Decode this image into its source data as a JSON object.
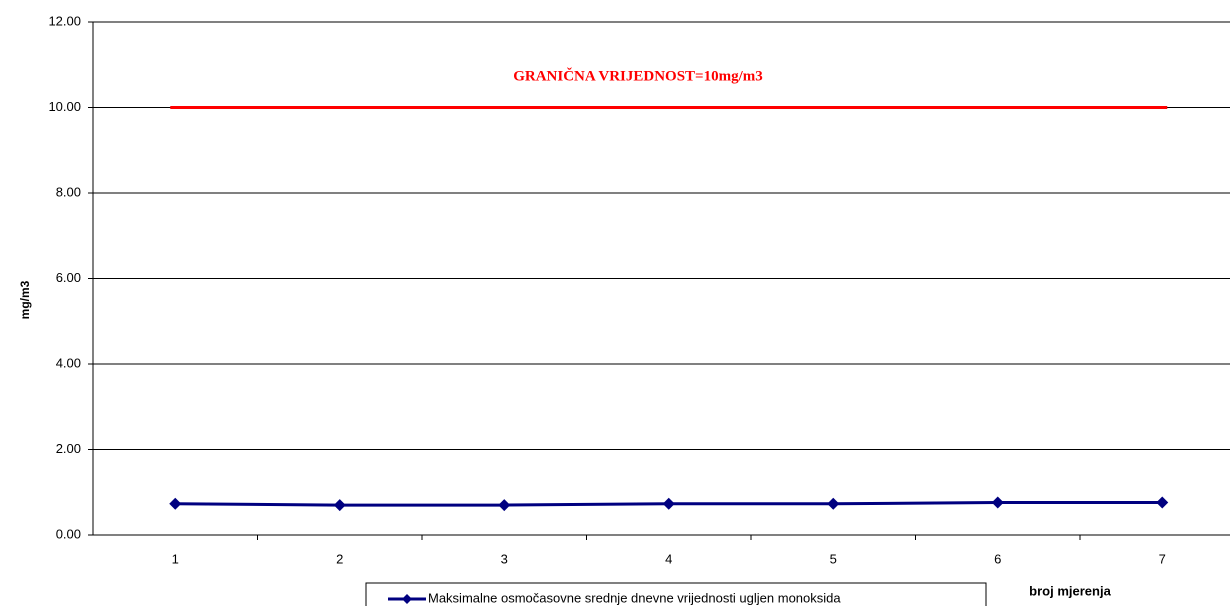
{
  "chart_data": {
    "type": "line",
    "annotation": "GRANIČNA VRIJEDNOST=10mg/m3",
    "y_label": "mg/m3",
    "x_label": "broj mjerenja",
    "categories": [
      "1",
      "2",
      "3",
      "4",
      "5",
      "6",
      "7"
    ],
    "series": [
      {
        "name": "Maksimalne osmočasovne srednje dnevne vrijednosti ugljen monoksida",
        "color": "#000080",
        "values": [
          0.73,
          0.7,
          0.7,
          0.73,
          0.73,
          0.76,
          0.76
        ]
      },
      {
        "color": "#ff0000",
        "values": [
          10,
          10,
          10,
          10,
          10,
          10,
          10
        ]
      }
    ],
    "ylim": [
      0,
      12
    ],
    "yticks": [
      {
        "value": 0,
        "label": "0.00"
      },
      {
        "value": 2,
        "label": "2.00"
      },
      {
        "value": 4,
        "label": "4.00"
      },
      {
        "value": 6,
        "label": "6.00"
      },
      {
        "value": 8,
        "label": "8.00"
      },
      {
        "value": 10,
        "label": "10.00"
      },
      {
        "value": 12,
        "label": "12.00"
      }
    ],
    "grid": true
  }
}
